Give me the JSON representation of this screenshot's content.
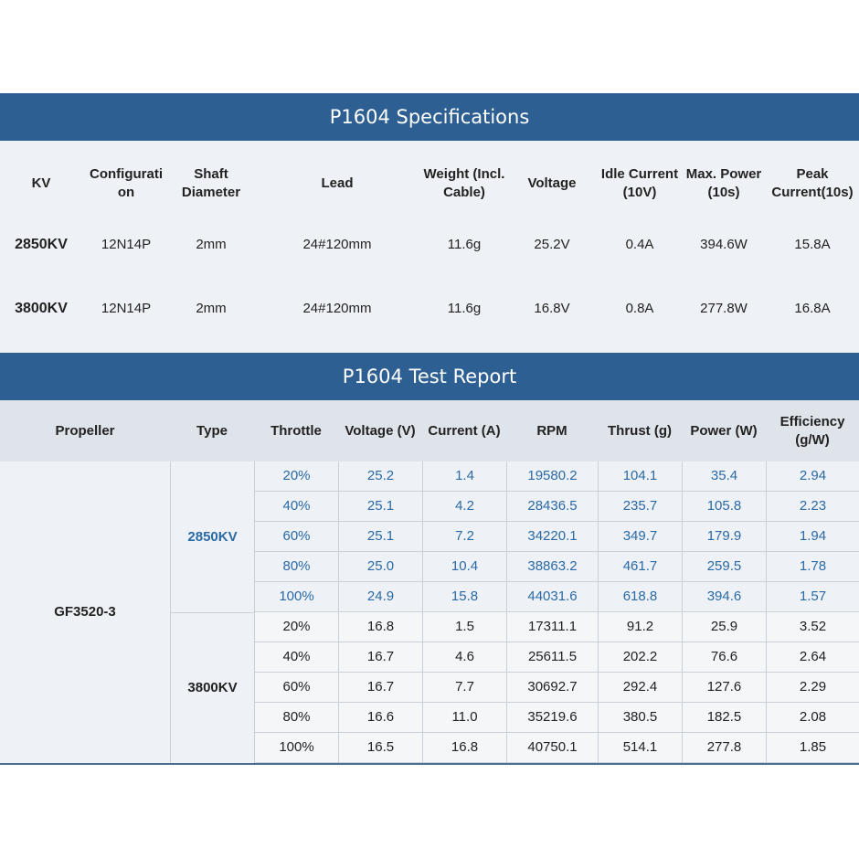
{
  "spec": {
    "title": "P1604 Specifications",
    "headers": [
      "KV",
      "Configurati on",
      "Shaft Diameter",
      "Lead",
      "Weight (Incl. Cable)",
      "Voltage",
      "Idle Current (10V)",
      "Max. Power (10s)",
      "Peak Current(10s)"
    ],
    "rows": [
      [
        "2850KV",
        "12N14P",
        "2mm",
        "24#120mm",
        "11.6g",
        "25.2V",
        "0.4A",
        "394.6W",
        "15.8A"
      ],
      [
        "3800KV",
        "12N14P",
        "2mm",
        "24#120mm",
        "11.6g",
        "16.8V",
        "0.8A",
        "277.8W",
        "16.8A"
      ]
    ]
  },
  "test": {
    "title": "P1604 Test Report",
    "headers": [
      "Propeller",
      "Type",
      "Throttle",
      "Voltage (V)",
      "Current (A)",
      "RPM",
      "Thrust (g)",
      "Power (W)",
      "Efficiency (g/W)"
    ],
    "propeller": "GF3520-3",
    "groups": [
      {
        "type": "2850KV",
        "rows": [
          [
            "20%",
            "25.2",
            "1.4",
            "19580.2",
            "104.1",
            "35.4",
            "2.94"
          ],
          [
            "40%",
            "25.1",
            "4.2",
            "28436.5",
            "235.7",
            "105.8",
            "2.23"
          ],
          [
            "60%",
            "25.1",
            "7.2",
            "34220.1",
            "349.7",
            "179.9",
            "1.94"
          ],
          [
            "80%",
            "25.0",
            "10.4",
            "38863.2",
            "461.7",
            "259.5",
            "1.78"
          ],
          [
            "100%",
            "24.9",
            "15.8",
            "44031.6",
            "618.8",
            "394.6",
            "1.57"
          ]
        ]
      },
      {
        "type": "3800KV",
        "rows": [
          [
            "20%",
            "16.8",
            "1.5",
            "17311.1",
            "91.2",
            "25.9",
            "3.52"
          ],
          [
            "40%",
            "16.7",
            "4.6",
            "25611.5",
            "202.2",
            "76.6",
            "2.64"
          ],
          [
            "60%",
            "16.7",
            "7.7",
            "30692.7",
            "292.4",
            "127.6",
            "2.29"
          ],
          [
            "80%",
            "16.6",
            "11.0",
            "35219.6",
            "380.5",
            "182.5",
            "2.08"
          ],
          [
            "100%",
            "16.5",
            "16.8",
            "40750.1",
            "514.1",
            "277.8",
            "1.85"
          ]
        ]
      }
    ]
  },
  "colors": {
    "band": "#2e5f93",
    "accent_text": "#2a6aa6"
  }
}
